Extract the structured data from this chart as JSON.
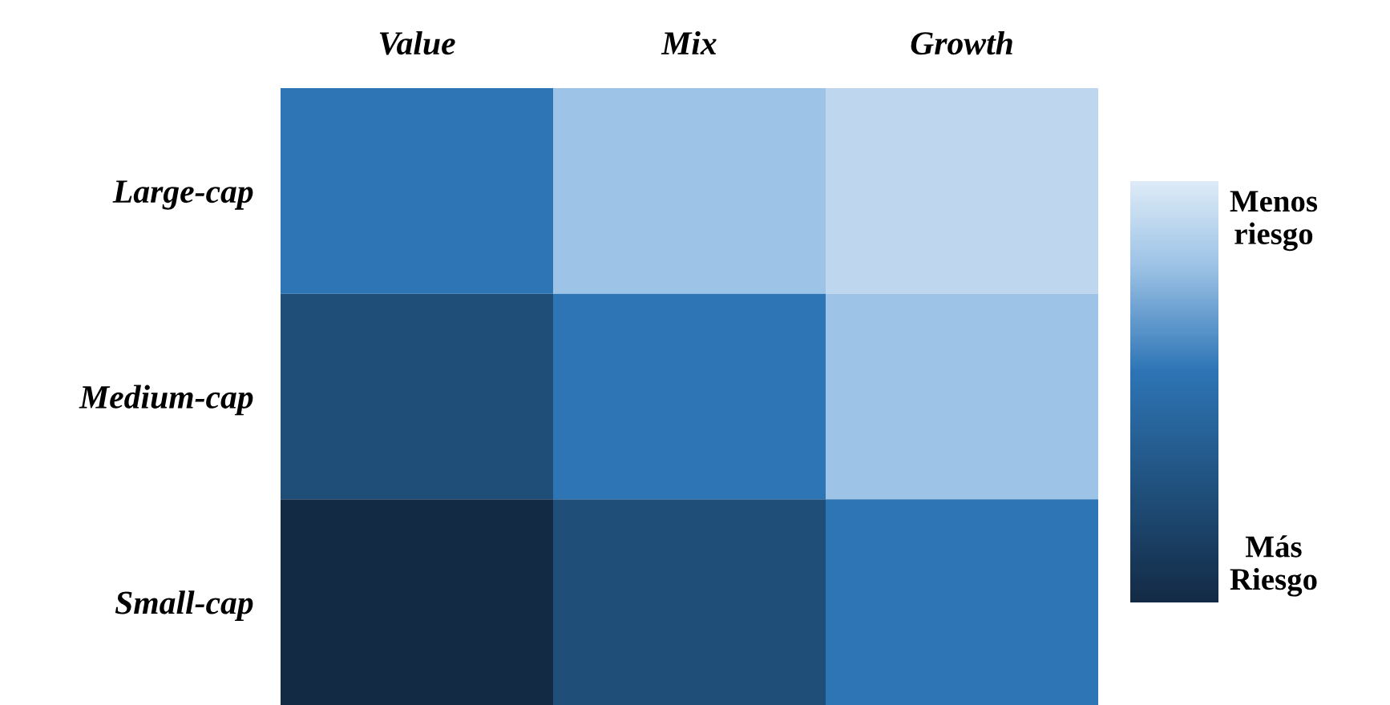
{
  "chart_data": {
    "type": "heatmap",
    "categories": [
      "Value",
      "Mix",
      "Growth"
    ],
    "y_categories": [
      "Large-cap",
      "Medium-cap",
      "Small-cap"
    ],
    "cells": [
      [
        0.45,
        0.2,
        0.1
      ],
      [
        0.75,
        0.45,
        0.2
      ],
      [
        1.0,
        0.75,
        0.45
      ]
    ],
    "clim": [
      0,
      1
    ],
    "cticks": [
      {
        "value": 0.08,
        "label": "Menos riesgo"
      },
      {
        "value": 0.9,
        "label": "Más Riesgo"
      }
    ]
  }
}
